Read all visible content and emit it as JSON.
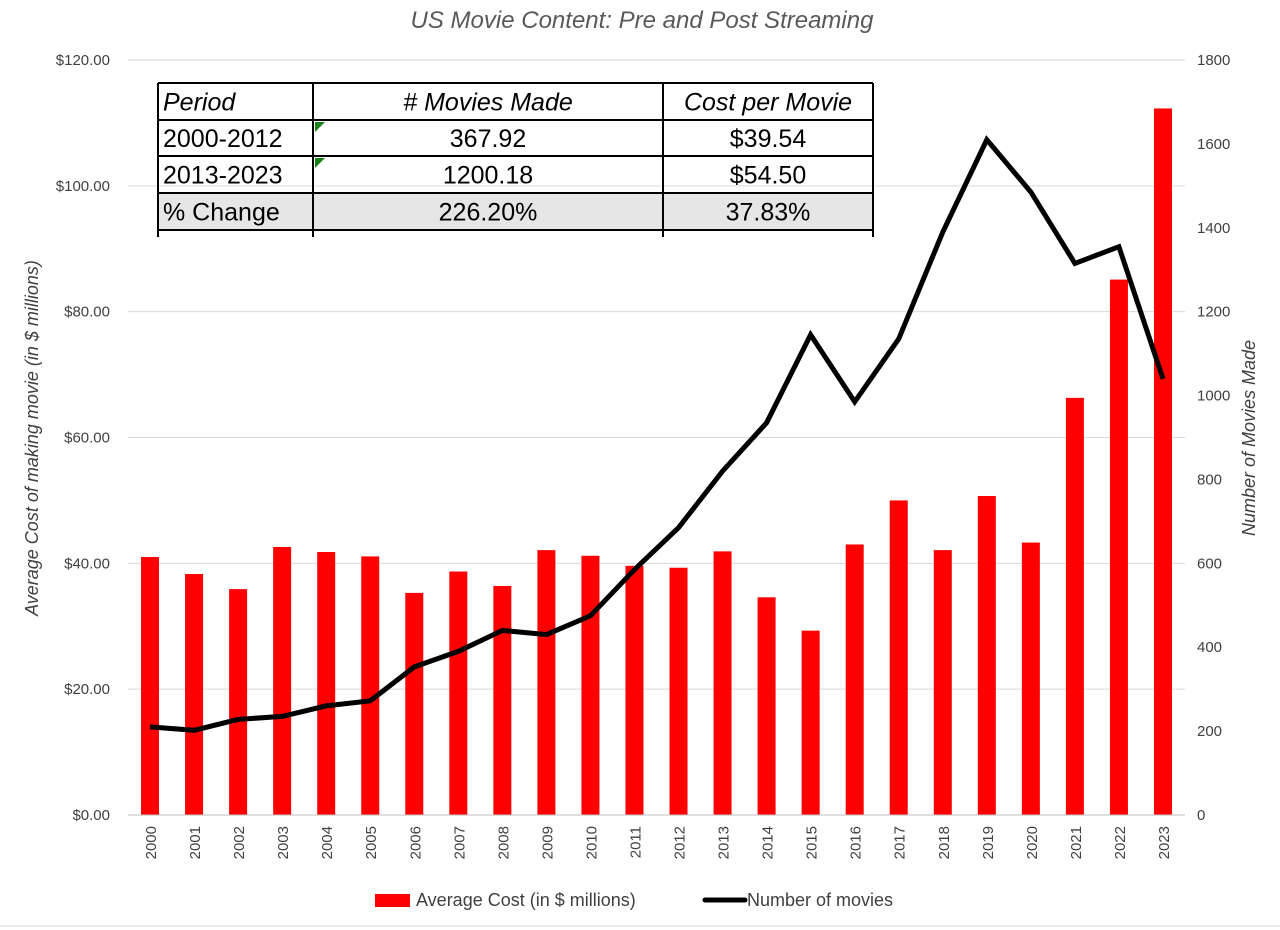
{
  "chart_data": {
    "type": "bar",
    "title": "US Movie Content: Pre and Post Streaming",
    "categories": [
      "2000",
      "2001",
      "2002",
      "2003",
      "2004",
      "2005",
      "2006",
      "2007",
      "2008",
      "2009",
      "2010",
      "2011",
      "2012",
      "2013",
      "2014",
      "2015",
      "2016",
      "2017",
      "2018",
      "2019",
      "2020",
      "2021",
      "2022",
      "2023"
    ],
    "series": [
      {
        "name": "Average Cost (in $ millions)",
        "kind": "bar",
        "axis": "left",
        "color": "#ff0000",
        "values": [
          41.0,
          38.3,
          35.9,
          42.6,
          41.8,
          41.1,
          35.3,
          38.7,
          36.4,
          42.1,
          41.2,
          39.6,
          39.3,
          41.9,
          34.6,
          29.3,
          43.0,
          50.0,
          42.1,
          50.7,
          43.3,
          66.3,
          85.1,
          112.3
        ]
      },
      {
        "name": "Number of movies",
        "kind": "line",
        "axis": "right",
        "color": "#000000",
        "values": [
          210,
          202,
          228,
          235,
          260,
          272,
          353,
          390,
          440,
          430,
          475,
          585,
          685,
          820,
          935,
          1145,
          985,
          1135,
          1390,
          1610,
          1485,
          1315,
          1355,
          1040
        ]
      }
    ],
    "ylabel": "Average Cost of making movie (in $ millions)",
    "ylabel_right": "Number of Movies Made",
    "ylim": [
      0,
      120
    ],
    "ylim_right": [
      0,
      1800
    ],
    "yticks_left": [
      "$120.00",
      "$100.00",
      "$80.00",
      "$60.00",
      "$40.00",
      "$20.00",
      "$0.00"
    ],
    "yticks_right": [
      "1800",
      "1600",
      "1400",
      "1200",
      "1000",
      "800",
      "600",
      "400",
      "200",
      "0"
    ],
    "grid": true,
    "legend": "bottom",
    "table": {
      "headers": [
        "Period",
        "# Movies Made",
        "Cost per Movie"
      ],
      "rows": [
        [
          "2000-2012",
          "367.92",
          "$39.54"
        ],
        [
          "2013-2023",
          "1200.18",
          "$54.50"
        ],
        [
          "% Change",
          "226.20%",
          "37.83%"
        ]
      ]
    }
  }
}
